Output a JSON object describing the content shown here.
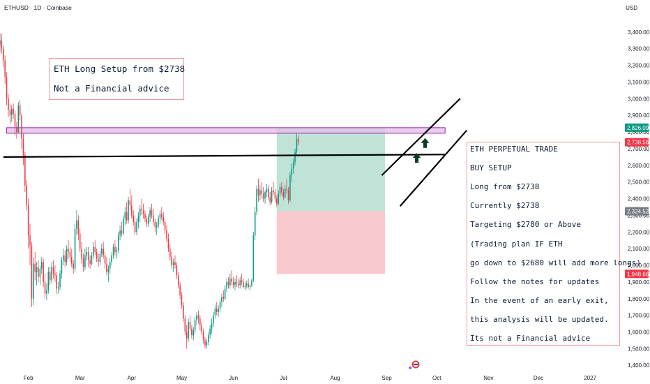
{
  "header": {
    "symbol_line": "ETHUSD · 1D · Coinbase",
    "currency": "USD"
  },
  "chart_data": {
    "type": "candlestick",
    "symbol": "ETHUSD",
    "interval": "1D",
    "exchange": "Coinbase",
    "y_axis": {
      "side": "right",
      "ticks": [
        1400,
        1500,
        1600,
        1700,
        1800,
        1900,
        2000,
        2100,
        2200,
        2300,
        2400,
        2500,
        2600,
        2700,
        2800,
        2900,
        3000,
        3100,
        3200,
        3300,
        3400
      ],
      "tick_labels": [
        "1,400.00",
        "1,500.00",
        "1,600.00",
        "1,700.00",
        "1,800.00",
        "1,900.00",
        "2,000.00",
        "2,100.00",
        "2,200.00",
        "2,300.00",
        "2,400.00",
        "2,500.00",
        "2,600.00",
        "2,700.00",
        "2,800.00",
        "2,900.00",
        "3,000.00",
        "3,100.00",
        "3,200.00",
        "3,300.00",
        "3,400.00"
      ],
      "range": [
        1380,
        3500
      ]
    },
    "x_axis": {
      "tick_labels": [
        "Feb",
        "Mar",
        "Apr",
        "May",
        "Jun",
        "Jul",
        "Aug",
        "Sep",
        "Oct",
        "Nov",
        "Dec",
        "2027"
      ],
      "tick_days": [
        0,
        31,
        62,
        92,
        123,
        153,
        184,
        215,
        245,
        276,
        306,
        337
      ],
      "range_days": [
        -17,
        352
      ]
    },
    "price_labels": [
      {
        "text": "2,826.09",
        "value": 2826.09,
        "color": "#089981"
      },
      {
        "text": "2,738.56",
        "value": 2738.56,
        "color": "#f23645"
      },
      {
        "text": "2,324.52",
        "value": 2324.52,
        "color": "#787b86"
      },
      {
        "text": "1,948.66",
        "value": 1948.66,
        "color": "#f23645"
      }
    ],
    "resistance_zone": {
      "low": 2800,
      "high": 2826.09,
      "start_day": -13,
      "end_day": 250,
      "color": "#e1bee7"
    },
    "support_line": {
      "start_day": -15,
      "start_price": 2650,
      "end_day": 250,
      "end_price": 2665
    },
    "trade_box": {
      "start_day": 149,
      "end_day": 214,
      "target": 2826.09,
      "entry": 2324.52,
      "stop": 1948.66,
      "profit_color": "#bfe3d6",
      "loss_color": "#f8c9cc"
    },
    "channel": [
      {
        "start_day": 212,
        "start_price": 2540,
        "end_day": 259,
        "end_price": 3000
      },
      {
        "start_day": 223,
        "start_price": 2355,
        "end_day": 263,
        "end_price": 2810
      }
    ],
    "arrows": [
      {
        "day": 233,
        "price": 2640
      },
      {
        "day": 238,
        "price": 2730
      }
    ],
    "colors": {
      "up": "#089981",
      "down": "#f23645"
    },
    "candles_start_day": -17,
    "candles": [
      [
        3320,
        3390,
        3280,
        3350
      ],
      [
        3350,
        3390,
        3270,
        3300
      ],
      [
        3300,
        3320,
        3190,
        3230
      ],
      [
        3230,
        3260,
        3090,
        3130
      ],
      [
        3130,
        3160,
        2960,
        3000
      ],
      [
        3000,
        3030,
        2890,
        2930
      ],
      [
        2930,
        2970,
        2850,
        2900
      ],
      [
        2900,
        2960,
        2860,
        2940
      ],
      [
        2940,
        2970,
        2880,
        2910
      ],
      [
        2910,
        2930,
        2780,
        2830
      ],
      [
        2830,
        2860,
        2760,
        2800
      ],
      [
        2800,
        2980,
        2790,
        2960
      ],
      [
        2960,
        2990,
        2870,
        2900
      ],
      [
        2900,
        2910,
        2700,
        2760
      ],
      [
        2760,
        2790,
        2600,
        2660
      ],
      [
        2660,
        2680,
        2440,
        2480
      ],
      [
        2480,
        2510,
        2330,
        2360
      ],
      [
        2360,
        2400,
        2100,
        2180
      ],
      [
        2180,
        2250,
        2000,
        2120
      ],
      [
        2120,
        2140,
        1750,
        1800
      ],
      [
        1800,
        2050,
        1760,
        2010
      ],
      [
        2010,
        2080,
        1910,
        1960
      ],
      [
        1960,
        2020,
        1880,
        1990
      ],
      [
        1990,
        2030,
        1900,
        1930
      ],
      [
        1930,
        2000,
        1880,
        1980
      ],
      [
        1980,
        2050,
        1950,
        2020
      ],
      [
        2020,
        2040,
        1870,
        1900
      ],
      [
        1900,
        1950,
        1800,
        1830
      ],
      [
        1830,
        1890,
        1790,
        1850
      ],
      [
        1850,
        1990,
        1830,
        1960
      ],
      [
        1960,
        1990,
        1880,
        1910
      ],
      [
        1910,
        2020,
        1890,
        1990
      ],
      [
        1990,
        2030,
        1920,
        1950
      ],
      [
        1950,
        2000,
        1900,
        1940
      ],
      [
        1940,
        1960,
        1830,
        1860
      ],
      [
        1860,
        1900,
        1830,
        1870
      ],
      [
        1870,
        1970,
        1850,
        1950
      ],
      [
        1950,
        2050,
        1920,
        2030
      ],
      [
        2030,
        2100,
        2000,
        2060
      ],
      [
        2060,
        2090,
        1990,
        2020
      ],
      [
        2020,
        2120,
        2000,
        2100
      ],
      [
        2100,
        2150,
        2040,
        2080
      ],
      [
        2080,
        2110,
        2020,
        2050
      ],
      [
        2050,
        2100,
        1990,
        2010
      ],
      [
        2010,
        2030,
        1950,
        1980
      ],
      [
        1980,
        2250,
        1960,
        2220
      ],
      [
        2220,
        2330,
        2180,
        2270
      ],
      [
        2270,
        2300,
        2150,
        2190
      ],
      [
        2190,
        2220,
        2080,
        2100
      ],
      [
        2100,
        2140,
        2010,
        2040
      ],
      [
        2040,
        2070,
        1960,
        1990
      ],
      [
        1990,
        2100,
        1970,
        2060
      ],
      [
        2060,
        2110,
        2030,
        2080
      ],
      [
        2080,
        2110,
        1990,
        2030
      ],
      [
        2030,
        2060,
        1980,
        2010
      ],
      [
        2010,
        2080,
        2000,
        2060
      ],
      [
        2060,
        2140,
        2040,
        2110
      ],
      [
        2110,
        2150,
        2060,
        2080
      ],
      [
        2080,
        2100,
        2020,
        2040
      ],
      [
        2040,
        2070,
        1990,
        2020
      ],
      [
        2020,
        2090,
        2000,
        2070
      ],
      [
        2070,
        2130,
        2050,
        2100
      ],
      [
        2100,
        2140,
        2040,
        2060
      ],
      [
        2060,
        2080,
        1980,
        2010
      ],
      [
        2010,
        2050,
        1940,
        1960
      ],
      [
        1960,
        2000,
        1900,
        1980
      ],
      [
        1980,
        2040,
        1950,
        2020
      ],
      [
        2020,
        2080,
        2000,
        2060
      ],
      [
        2060,
        2130,
        2040,
        2110
      ],
      [
        2110,
        2150,
        2060,
        2080
      ],
      [
        2080,
        2110,
        2040,
        2090
      ],
      [
        2090,
        2200,
        2070,
        2180
      ],
      [
        2180,
        2240,
        2150,
        2210
      ],
      [
        2210,
        2260,
        2170,
        2190
      ],
      [
        2190,
        2300,
        2180,
        2280
      ],
      [
        2280,
        2350,
        2240,
        2320
      ],
      [
        2320,
        2380,
        2250,
        2270
      ],
      [
        2270,
        2410,
        2250,
        2390
      ],
      [
        2390,
        2460,
        2330,
        2360
      ],
      [
        2360,
        2420,
        2280,
        2300
      ],
      [
        2300,
        2330,
        2240,
        2260
      ],
      [
        2260,
        2300,
        2180,
        2200
      ],
      [
        2200,
        2280,
        2180,
        2260
      ],
      [
        2260,
        2320,
        2220,
        2300
      ],
      [
        2300,
        2360,
        2260,
        2340
      ],
      [
        2340,
        2400,
        2300,
        2330
      ],
      [
        2330,
        2370,
        2280,
        2310
      ],
      [
        2310,
        2330,
        2260,
        2280
      ],
      [
        2280,
        2300,
        2230,
        2250
      ],
      [
        2250,
        2310,
        2230,
        2290
      ],
      [
        2290,
        2350,
        2260,
        2330
      ],
      [
        2330,
        2370,
        2280,
        2300
      ],
      [
        2300,
        2340,
        2240,
        2260
      ],
      [
        2260,
        2280,
        2200,
        2230
      ],
      [
        2230,
        2260,
        2180,
        2240
      ],
      [
        2240,
        2300,
        2220,
        2280
      ],
      [
        2280,
        2330,
        2250,
        2310
      ],
      [
        2310,
        2350,
        2270,
        2290
      ],
      [
        2290,
        2320,
        2240,
        2260
      ],
      [
        2260,
        2280,
        2190,
        2210
      ],
      [
        2210,
        2240,
        2140,
        2160
      ],
      [
        2160,
        2190,
        2080,
        2100
      ],
      [
        2100,
        2130,
        2030,
        2050
      ],
      [
        2050,
        2080,
        1980,
        2000
      ],
      [
        2000,
        2040,
        1960,
        2020
      ],
      [
        2020,
        2060,
        1980,
        2000
      ],
      [
        2000,
        2020,
        1920,
        1940
      ],
      [
        1940,
        1960,
        1860,
        1880
      ],
      [
        1880,
        1900,
        1800,
        1820
      ],
      [
        1820,
        1840,
        1740,
        1760
      ],
      [
        1760,
        1780,
        1660,
        1680
      ],
      [
        1680,
        1700,
        1580,
        1600
      ],
      [
        1600,
        1640,
        1500,
        1560
      ],
      [
        1560,
        1680,
        1540,
        1660
      ],
      [
        1660,
        1700,
        1600,
        1620
      ],
      [
        1620,
        1640,
        1560,
        1580
      ],
      [
        1580,
        1630,
        1550,
        1610
      ],
      [
        1610,
        1690,
        1590,
        1670
      ],
      [
        1670,
        1720,
        1640,
        1700
      ],
      [
        1700,
        1730,
        1650,
        1680
      ],
      [
        1680,
        1700,
        1610,
        1640
      ],
      [
        1640,
        1660,
        1580,
        1600
      ],
      [
        1600,
        1620,
        1530,
        1550
      ],
      [
        1550,
        1570,
        1500,
        1520
      ],
      [
        1520,
        1560,
        1500,
        1540
      ],
      [
        1540,
        1600,
        1520,
        1580
      ],
      [
        1580,
        1640,
        1560,
        1620
      ],
      [
        1620,
        1680,
        1590,
        1650
      ],
      [
        1650,
        1720,
        1630,
        1700
      ],
      [
        1700,
        1760,
        1680,
        1740
      ],
      [
        1740,
        1780,
        1700,
        1720
      ],
      [
        1720,
        1760,
        1690,
        1740
      ],
      [
        1740,
        1800,
        1720,
        1780
      ],
      [
        1780,
        1830,
        1750,
        1810
      ],
      [
        1810,
        1850,
        1780,
        1800
      ],
      [
        1800,
        1880,
        1790,
        1860
      ],
      [
        1860,
        1920,
        1840,
        1900
      ],
      [
        1900,
        1930,
        1860,
        1880
      ],
      [
        1880,
        1950,
        1860,
        1920
      ],
      [
        1920,
        1970,
        1880,
        1900
      ],
      [
        1900,
        1930,
        1860,
        1880
      ],
      [
        1880,
        1920,
        1850,
        1900
      ],
      [
        1900,
        1940,
        1870,
        1890
      ],
      [
        1890,
        1920,
        1860,
        1880
      ],
      [
        1880,
        1930,
        1860,
        1910
      ],
      [
        1910,
        1950,
        1880,
        1900
      ],
      [
        1900,
        1920,
        1860,
        1870
      ],
      [
        1870,
        1900,
        1850,
        1880
      ],
      [
        1880,
        1910,
        1860,
        1890
      ],
      [
        1890,
        1920,
        1860,
        1870
      ],
      [
        1870,
        1890,
        1850,
        1880
      ],
      [
        1880,
        1920,
        1870,
        1910
      ],
      [
        1910,
        2200,
        1900,
        2180
      ],
      [
        2180,
        2350,
        2150,
        2320
      ],
      [
        2320,
        2480,
        2300,
        2460
      ],
      [
        2460,
        2520,
        2380,
        2420
      ],
      [
        2420,
        2480,
        2390,
        2450
      ],
      [
        2450,
        2500,
        2400,
        2430
      ],
      [
        2430,
        2470,
        2380,
        2400
      ],
      [
        2400,
        2450,
        2370,
        2440
      ],
      [
        2440,
        2490,
        2410,
        2460
      ],
      [
        2460,
        2480,
        2390,
        2410
      ],
      [
        2410,
        2440,
        2360,
        2380
      ],
      [
        2380,
        2470,
        2370,
        2450
      ],
      [
        2450,
        2500,
        2420,
        2440
      ],
      [
        2440,
        2460,
        2380,
        2400
      ],
      [
        2400,
        2420,
        2350,
        2370
      ],
      [
        2370,
        2450,
        2360,
        2430
      ],
      [
        2430,
        2490,
        2410,
        2470
      ],
      [
        2470,
        2500,
        2420,
        2440
      ],
      [
        2440,
        2460,
        2390,
        2410
      ],
      [
        2410,
        2480,
        2400,
        2460
      ],
      [
        2460,
        2520,
        2430,
        2450
      ],
      [
        2450,
        2470,
        2370,
        2390
      ],
      [
        2390,
        2560,
        2380,
        2540
      ],
      [
        2540,
        2610,
        2500,
        2580
      ],
      [
        2580,
        2640,
        2550,
        2620
      ],
      [
        2620,
        2700,
        2600,
        2680
      ],
      [
        2680,
        2790,
        2660,
        2760
      ],
      [
        2760,
        2780,
        2720,
        2738.56
      ]
    ]
  },
  "annotations": {
    "left_note": [
      "ETH Long Setup from $2738",
      "Not a Financial advice"
    ],
    "right_note": [
      "ETH PERPETUAL TRADE",
      "BUY SETUP",
      "Long from $2738",
      "Currently $2738",
      "Targeting $2780 or Above",
      "(Trading plan IF ETH",
      "go down to $2680 will add more longs)",
      "Follow the notes for updates",
      "In the event of an early exit,",
      "this analysis will be updated.",
      "Its not a Financial advice"
    ]
  }
}
